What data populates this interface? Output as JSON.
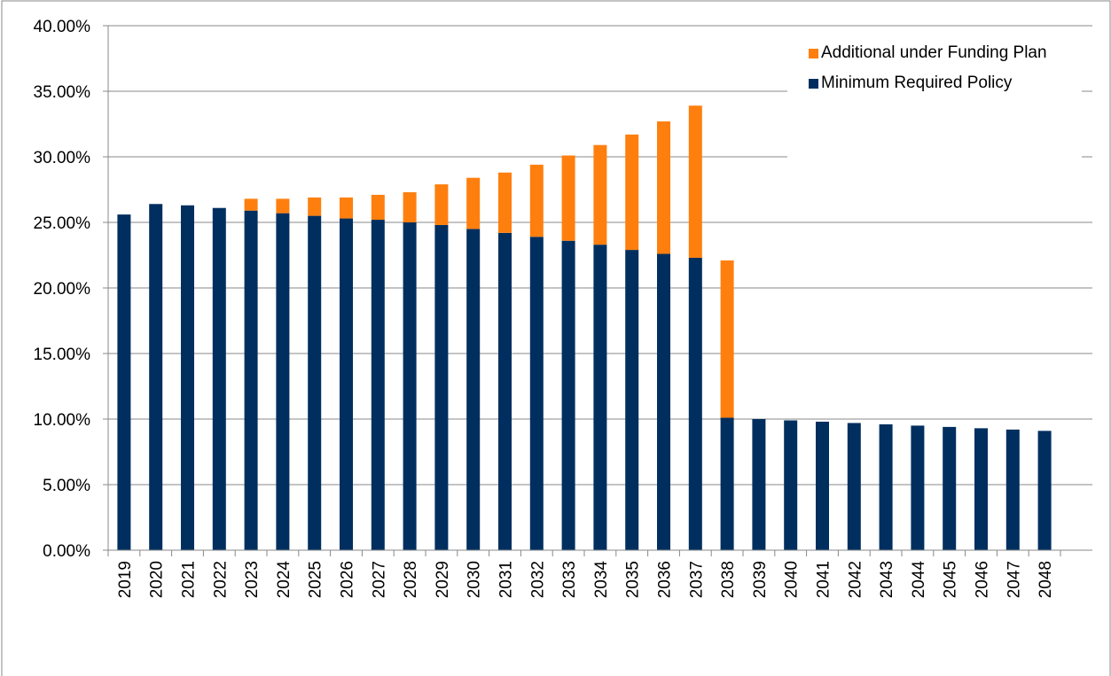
{
  "chart_data": {
    "type": "stacked_bar",
    "categories": [
      "2019",
      "2020",
      "2021",
      "2022",
      "2023",
      "2024",
      "2025",
      "2026",
      "2027",
      "2028",
      "2029",
      "2030",
      "2031",
      "2032",
      "2033",
      "2034",
      "2035",
      "2036",
      "2037",
      "2038",
      "2039",
      "2040",
      "2041",
      "2042",
      "2043",
      "2044",
      "2045",
      "2046",
      "2047",
      "2048"
    ],
    "series": [
      {
        "name": "Minimum Required Policy",
        "color": "#002f5f",
        "values": [
          25.6,
          26.4,
          26.3,
          26.1,
          25.9,
          25.7,
          25.5,
          25.3,
          25.2,
          25.0,
          24.8,
          24.5,
          24.2,
          23.9,
          23.6,
          23.3,
          22.9,
          22.6,
          22.3,
          10.1,
          10.0,
          9.9,
          9.8,
          9.7,
          9.6,
          9.5,
          9.4,
          9.3,
          9.2,
          9.1
        ]
      },
      {
        "name": "Additional under Funding Plan",
        "color": "#ff7f0e",
        "values": [
          0,
          0,
          0,
          0,
          0.9,
          1.1,
          1.4,
          1.6,
          1.9,
          2.3,
          3.1,
          3.9,
          4.6,
          5.5,
          6.5,
          7.6,
          8.8,
          10.1,
          11.6,
          12.0,
          0,
          0,
          0,
          0,
          0,
          0,
          0,
          0,
          0,
          0
        ]
      }
    ],
    "ylim": [
      0,
      40
    ],
    "yticks": [
      {
        "value": 0,
        "label": "0.00%"
      },
      {
        "value": 5,
        "label": "5.00%"
      },
      {
        "value": 10,
        "label": "10.00%"
      },
      {
        "value": 15,
        "label": "15.00%"
      },
      {
        "value": 20,
        "label": "20.00%"
      },
      {
        "value": 25,
        "label": "25.00%"
      },
      {
        "value": 30,
        "label": "30.00%"
      },
      {
        "value": 35,
        "label": "35.00%"
      },
      {
        "value": 40,
        "label": "40.00%"
      }
    ],
    "grid": true
  }
}
